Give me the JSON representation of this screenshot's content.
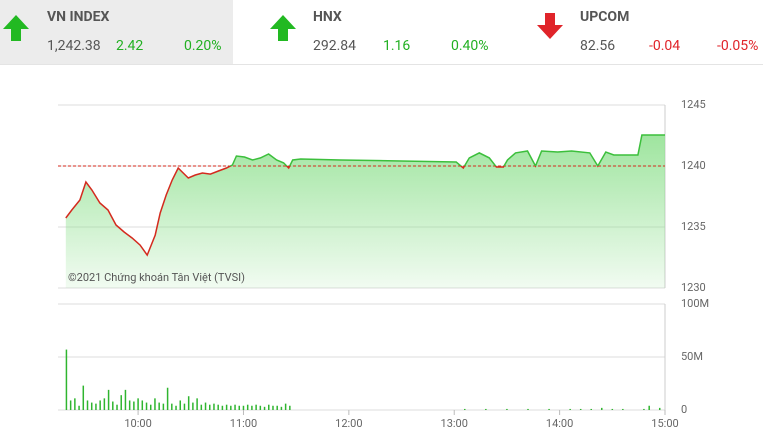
{
  "header": {
    "indices": [
      {
        "name": "VN INDEX",
        "value": "1,242.38",
        "change": "2.42",
        "percent": "0.20%"
      },
      {
        "name": "HNX",
        "value": "292.84",
        "change": "1.16",
        "percent": "0.40%"
      },
      {
        "name": "UPCOM",
        "value": "82.56",
        "change": "-0.04",
        "percent": "-0.05%"
      }
    ]
  },
  "chart_data": [
    {
      "type": "line",
      "annotation": "©2021 Chứng khoán Tân Việt (TVSI)",
      "x": [
        9.314,
        9.371,
        9.448,
        9.505,
        9.562,
        9.638,
        9.714,
        9.79,
        9.867,
        9.943,
        10.019,
        10.086,
        10.162,
        10.21,
        10.267,
        10.324,
        10.381,
        10.419,
        10.476,
        10.543,
        10.61,
        10.686,
        10.762,
        10.838,
        10.895,
        10.933,
        11.01,
        11.086,
        11.162,
        11.238,
        11.314,
        11.381,
        11.429,
        11.467,
        11.543,
        11.924,
        12.495,
        13.019,
        13.086,
        13.143,
        13.238,
        13.333,
        13.4,
        13.467,
        13.505,
        13.581,
        13.695,
        13.771,
        13.829,
        13.981,
        14.114,
        14.286,
        14.362,
        14.438,
        14.514,
        14.743,
        14.781,
        15.0
      ],
      "values": [
        1235.74,
        1236.39,
        1237.21,
        1238.69,
        1238.03,
        1236.97,
        1236.39,
        1235.16,
        1234.59,
        1234.1,
        1233.52,
        1232.7,
        1234.34,
        1236.15,
        1237.62,
        1238.85,
        1239.84,
        1239.51,
        1239.02,
        1239.26,
        1239.43,
        1239.34,
        1239.59,
        1239.84,
        1240.08,
        1240.82,
        1240.74,
        1240.49,
        1240.66,
        1240.98,
        1240.49,
        1240.25,
        1239.84,
        1240.49,
        1240.57,
        1240.49,
        1240.41,
        1240.33,
        1239.84,
        1240.66,
        1241.07,
        1240.66,
        1239.92,
        1239.92,
        1240.49,
        1241.07,
        1241.23,
        1240.0,
        1241.23,
        1241.15,
        1241.23,
        1241.07,
        1240.0,
        1241.15,
        1240.9,
        1240.9,
        1242.54,
        1242.54
      ],
      "color": "#3cbf3c",
      "below_color": "#d42a1e",
      "fill_color": "#8ee08e",
      "reference": 1240,
      "xlim": [
        9.24,
        15.0
      ],
      "ylim": [
        1230,
        1245
      ],
      "yticks": [
        1230,
        1235,
        1240,
        1245
      ],
      "grid": true
    },
    {
      "type": "bar",
      "x": [
        9.32,
        9.36,
        9.4,
        9.44,
        9.48,
        9.52,
        9.56,
        9.6,
        9.64,
        9.68,
        9.72,
        9.76,
        9.8,
        9.84,
        9.88,
        9.92,
        9.96,
        10.0,
        10.04,
        10.08,
        10.12,
        10.16,
        10.2,
        10.24,
        10.28,
        10.32,
        10.36,
        10.4,
        10.44,
        10.48,
        10.52,
        10.56,
        10.6,
        10.64,
        10.68,
        10.72,
        10.76,
        10.8,
        10.84,
        10.88,
        10.92,
        10.96,
        11.0,
        11.04,
        11.08,
        11.12,
        11.16,
        11.2,
        11.24,
        11.28,
        11.32,
        11.36,
        11.4,
        11.44,
        13.1,
        13.3,
        13.5,
        13.7,
        13.9,
        14.1,
        14.2,
        14.3,
        14.4,
        14.5,
        14.6,
        14.8,
        14.85,
        14.95
      ],
      "values": [
        57,
        9,
        11,
        4,
        23,
        9,
        7,
        6,
        9,
        11,
        19,
        8,
        5,
        14,
        19,
        9,
        8,
        11,
        9,
        7,
        5,
        11,
        7,
        6,
        21,
        6,
        4,
        9,
        6,
        13,
        7,
        11,
        5,
        7,
        5,
        6,
        5,
        4,
        5,
        4,
        5,
        4,
        4,
        5,
        4,
        5,
        4,
        3,
        5,
        4,
        4,
        3,
        6,
        4,
        1,
        1,
        1,
        1,
        1,
        1,
        1,
        1,
        2,
        1,
        1,
        1,
        4,
        2
      ],
      "color": "#2fb52f",
      "xlim": [
        9.24,
        15.0
      ],
      "ylim": [
        0,
        100
      ],
      "yticks": [
        0,
        {
          "value": 50,
          "label": "50M"
        },
        {
          "value": 100,
          "label": "100M"
        }
      ],
      "xticks": [
        {
          "value": 10,
          "label": "10:00"
        },
        {
          "value": 11,
          "label": "11:00"
        },
        {
          "value": 12,
          "label": "12:00"
        },
        {
          "value": 13,
          "label": "13:00"
        },
        {
          "value": 14,
          "label": "14:00"
        },
        {
          "value": 15,
          "label": "15:00"
        }
      ],
      "grid": true
    }
  ]
}
